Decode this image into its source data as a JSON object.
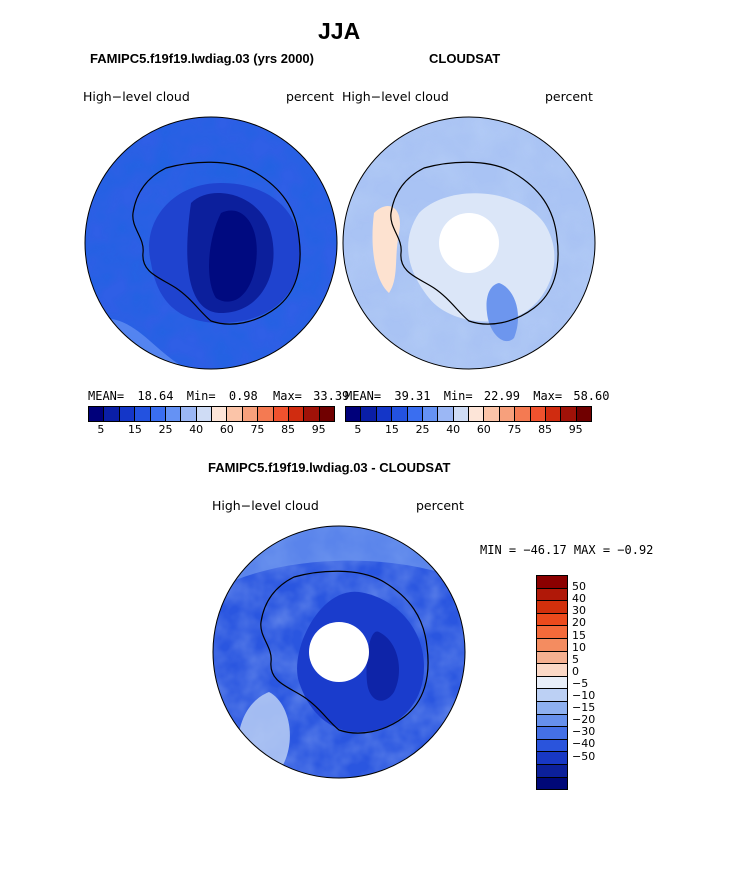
{
  "page": {
    "title": "JJA"
  },
  "panels": {
    "model": {
      "title": "FAMIPC5.f19f19.lwdiag.03 (yrs 2000)",
      "variable": "High−level cloud",
      "units": "percent",
      "stats": {
        "mean_label": "MEAN=",
        "mean": "18.64",
        "min_label": "Min=",
        "min": "0.98",
        "max_label": "Max=",
        "max": "33.39"
      }
    },
    "obs": {
      "title": "CLOUDSAT",
      "variable": "High−level cloud",
      "units": "percent",
      "stats": {
        "mean_label": "MEAN=",
        "mean": "39.31",
        "min_label": "Min=",
        "min": "22.99",
        "max_label": "Max=",
        "max": "58.60"
      }
    },
    "diff": {
      "title": "FAMIPC5.f19f19.lwdiag.03 - CLOUDSAT",
      "variable": "High−level cloud",
      "units": "percent",
      "minmax": "MIN = −46.17 MAX =  −0.92"
    }
  },
  "colorbars": {
    "absolute": {
      "colors": [
        "#00007a",
        "#0a1ea6",
        "#1436c8",
        "#2352e0",
        "#3a6ef0",
        "#6592f4",
        "#9bb7f5",
        "#cfdcf5",
        "#fde5d8",
        "#fbc4a8",
        "#f7a07c",
        "#f47a52",
        "#f0522e",
        "#d02c10",
        "#a01208",
        "#700000"
      ],
      "ticks": [
        "5",
        "15",
        "25",
        "40",
        "60",
        "75",
        "85",
        "95"
      ]
    },
    "difference": {
      "colors": [
        "#8b0000",
        "#b01808",
        "#d2300c",
        "#ec4a1c",
        "#f46a3a",
        "#f48c60",
        "#f5b090",
        "#fbd8c6",
        "#e8eef8",
        "#bcd0f4",
        "#8eb0f0",
        "#6690ec",
        "#4470e6",
        "#2a54dc",
        "#1838c4",
        "#0c209a",
        "#000878"
      ],
      "labels": [
        "50",
        "40",
        "30",
        "20",
        "15",
        "10",
        "5",
        "0",
        "−5",
        "−10",
        "−15",
        "−20",
        "−30",
        "−40",
        "−50"
      ]
    }
  }
}
